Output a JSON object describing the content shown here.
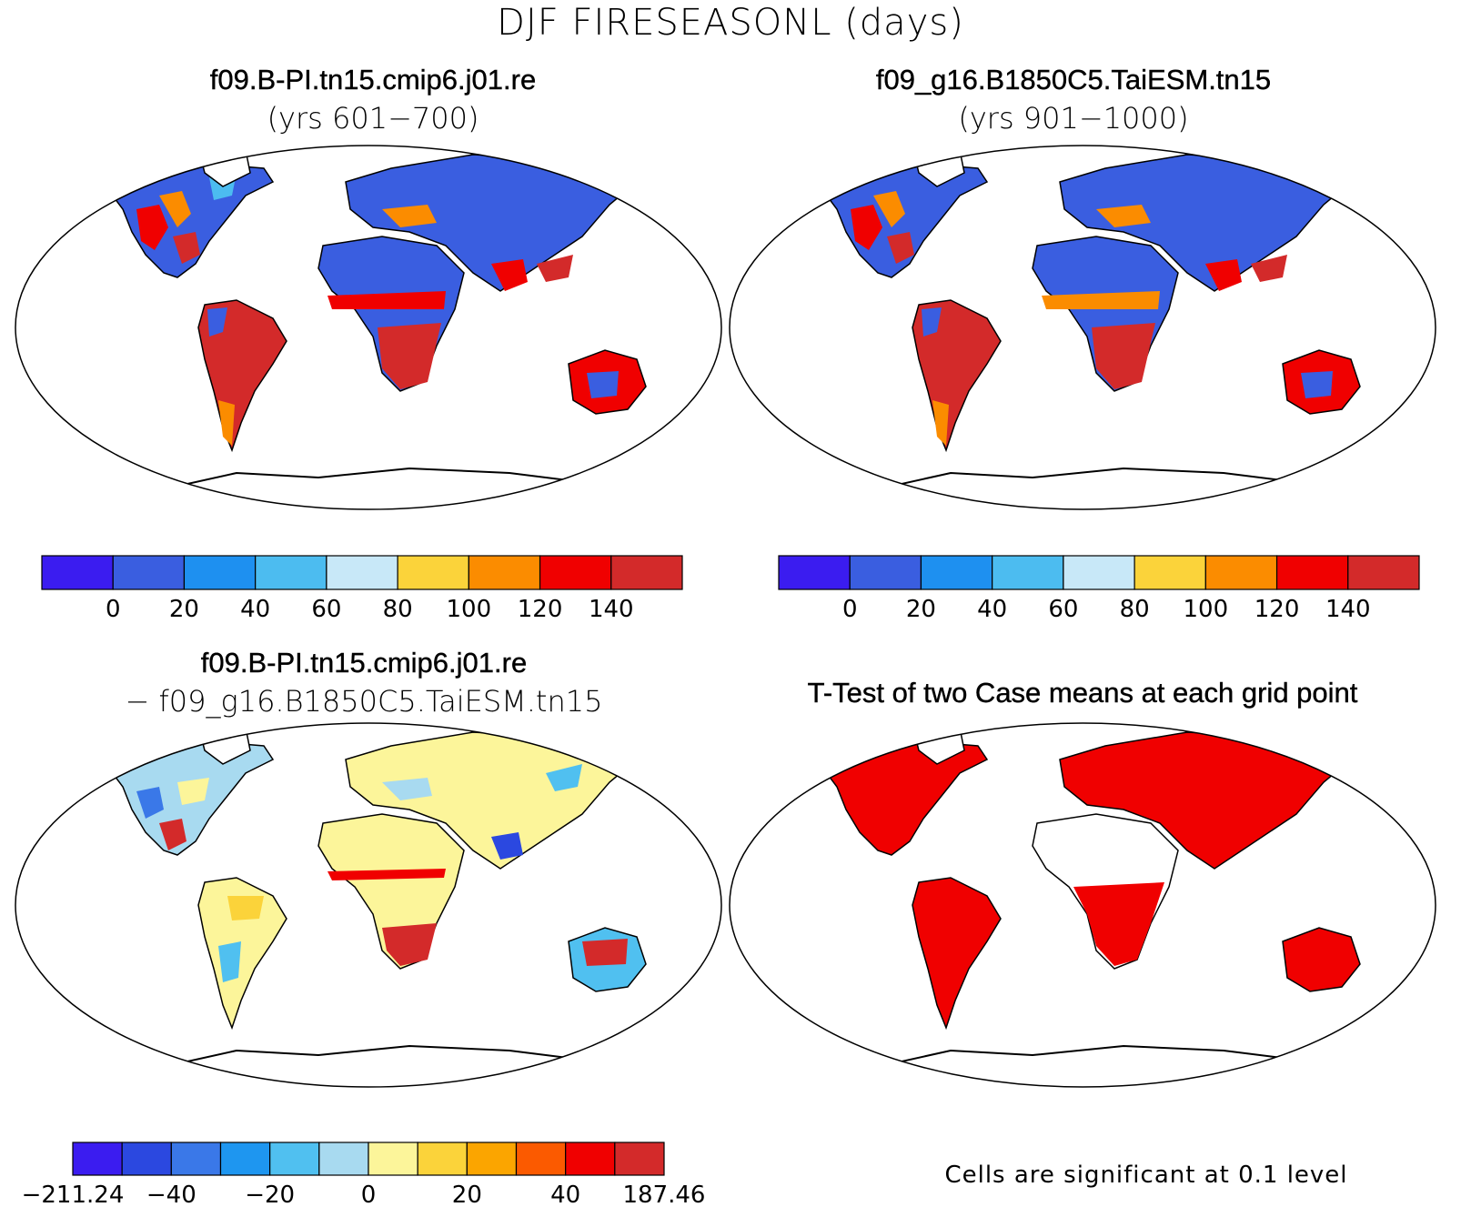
{
  "title": "DJF FIRESEASONL (days)",
  "panels": {
    "case1": {
      "title": "f09.B-PI.tn15.cmip6.j01.re",
      "subtitle": "(yrs 601−700)"
    },
    "case2": {
      "title": "f09_g16.B1850C5.TaiESM.tn15",
      "subtitle": "(yrs 901−1000)"
    },
    "diff": {
      "title": "f09.B-PI.tn15.cmip6.j01.re",
      "subtitle": "− f09_g16.B1850C5.TaiESM.tn15"
    },
    "ttest": {
      "title": "T-Test of two Case means at each grid point",
      "note": "Cells are significant at 0.1 level"
    }
  },
  "colorbars": {
    "abs": {
      "colors": [
        "#3b1cf0",
        "#3a5ee0",
        "#1e90f0",
        "#4cbcf0",
        "#c8e8f8",
        "#fbd33a",
        "#fb8c00",
        "#f00000",
        "#d32a2a"
      ],
      "labels": [
        "0",
        "20",
        "40",
        "60",
        "80",
        "100",
        "120",
        "140"
      ]
    },
    "diff": {
      "colors": [
        "#3b1cf0",
        "#2b48e0",
        "#3a78e8",
        "#1e96f0",
        "#50c0f0",
        "#a8daf0",
        "#fcf59a",
        "#fbd33a",
        "#fba500",
        "#fb5a00",
        "#f00000",
        "#d32a2a"
      ],
      "labels": [
        "−211.24",
        "−40",
        "−20",
        "0",
        "20",
        "40",
        "187.46"
      ]
    }
  }
}
